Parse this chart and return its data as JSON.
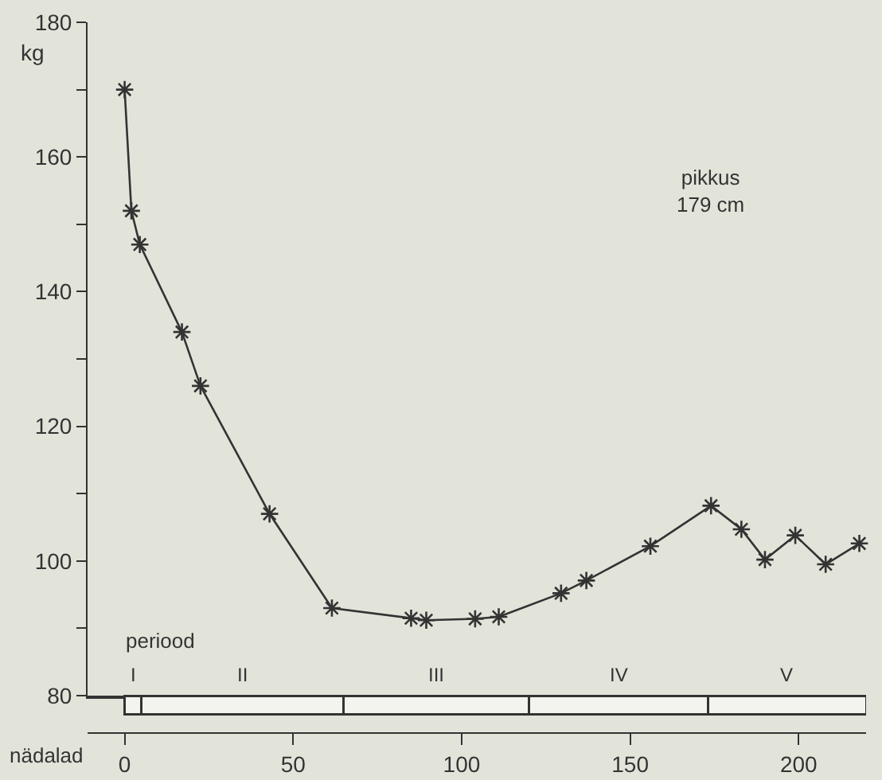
{
  "chart_data": [
    {
      "type": "line",
      "ylabel": "kg",
      "annotations": [
        "pikkus\n179 cm",
        "periood"
      ],
      "x": [
        0,
        2,
        4.5,
        17,
        22.5,
        43,
        61.5,
        85,
        89.5,
        104,
        111,
        129.5,
        137,
        156,
        174,
        183,
        190,
        199,
        208,
        218
      ],
      "series": [
        {
          "color": "#333333",
          "values": [
            170,
            152,
            147,
            134,
            126,
            107,
            93,
            91.5,
            91.2,
            91.4,
            91.7,
            95.2,
            97.1,
            102.2,
            108.2,
            104.7,
            100.2,
            103.8,
            99.5,
            102.6
          ]
        }
      ],
      "marker": "cross",
      "line_style": "solid",
      "grid": false,
      "tick_labels": "y",
      "xlim": [
        -11,
        220
      ],
      "ylim": [
        80,
        180
      ],
      "yticks": [
        80,
        {
          "value": 90,
          "label": null
        },
        100,
        {
          "value": 110,
          "label": null
        },
        120,
        {
          "value": 130,
          "label": null
        },
        140,
        {
          "value": 150,
          "label": null
        },
        160,
        {
          "value": 170,
          "label": null
        },
        180
      ]
    },
    {
      "type": "bar",
      "orientation": "horizontal",
      "stacked": true,
      "xlabel": "nädalad",
      "categories": [
        null
      ],
      "series": [
        {
          "name": "I",
          "color": "#f4f4ee",
          "values": [
            5
          ]
        },
        {
          "name": "II",
          "color": "#f4f4ee",
          "values": [
            60
          ]
        },
        {
          "name": "III",
          "color": "#f4f4ee",
          "values": [
            55
          ]
        },
        {
          "name": "IV",
          "color": "#f4f4ee",
          "values": [
            53
          ]
        },
        {
          "name": "V",
          "color": "#f4f4ee",
          "values": [
            47
          ]
        }
      ],
      "grid": false,
      "tick_labels": "x",
      "xlim": [
        -11,
        220
      ],
      "xticks": [
        0,
        50,
        100,
        150,
        200
      ]
    }
  ]
}
